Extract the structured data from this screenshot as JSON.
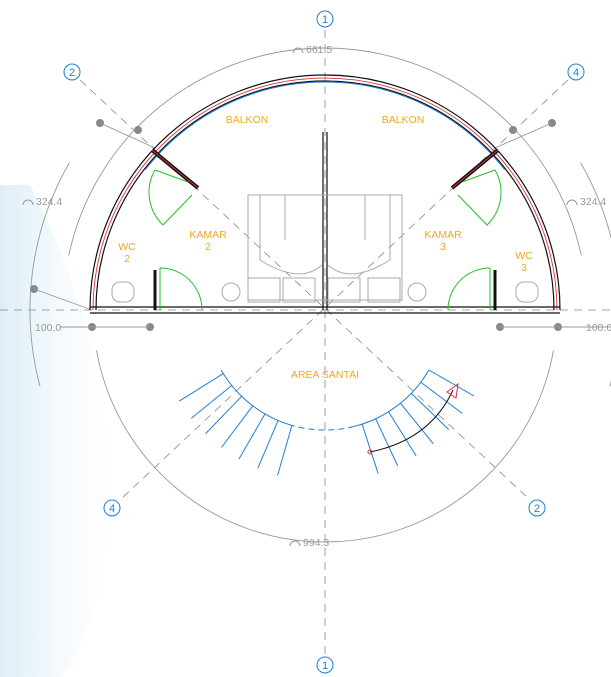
{
  "grid_labels": {
    "top": "1",
    "bottom": "1",
    "upper_left": "2",
    "lower_right": "2",
    "upper_right": "4",
    "lower_left": "4"
  },
  "dimensions": {
    "top_arc": "661.5",
    "left_arc": "324.4",
    "right_arc": "324.4",
    "left_offset": "100.0",
    "right_offset": "100.0",
    "bottom_arc": "994.3"
  },
  "rooms": {
    "balkon_left": "BALKON",
    "balkon_right": "BALKON",
    "kamar_2": {
      "name": "KAMAR",
      "number": "2"
    },
    "kamar_3": {
      "name": "KAMAR",
      "number": "3"
    },
    "wc_2": {
      "name": "WC",
      "number": "2"
    },
    "wc_3": {
      "name": "WC",
      "number": "3"
    },
    "area_santai": "AREA  SANTAI"
  }
}
